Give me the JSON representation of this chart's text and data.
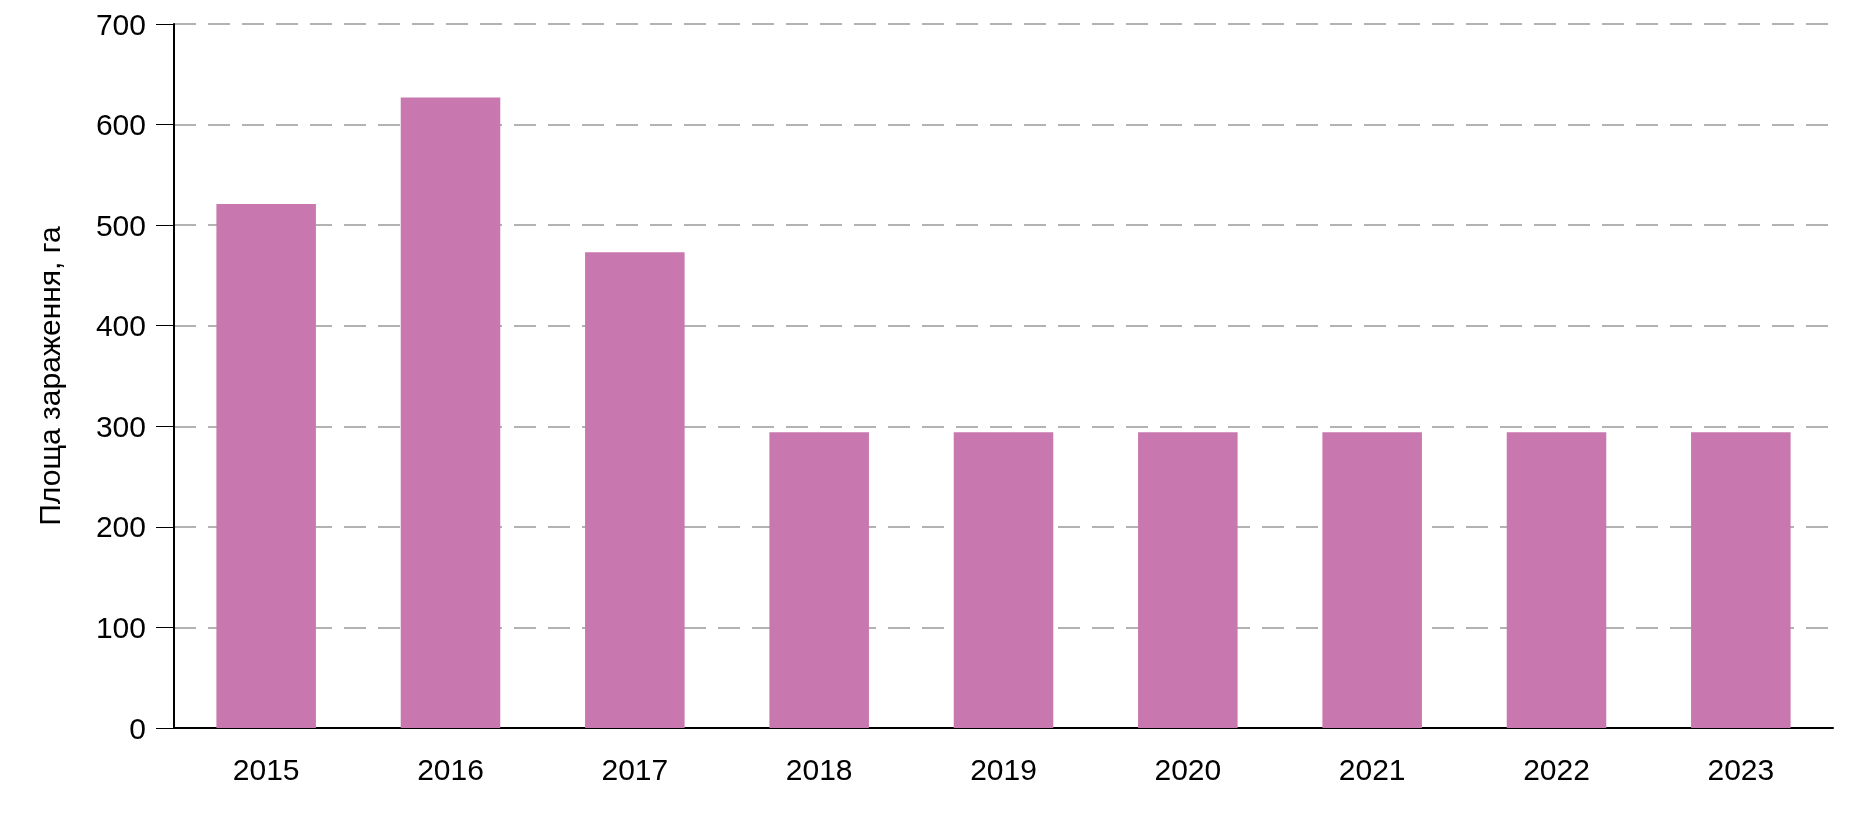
{
  "chart_data": {
    "type": "bar",
    "ylabel": "Площа зараження, га",
    "categories": [
      "2015",
      "2016",
      "2017",
      "2018",
      "2019",
      "2020",
      "2021",
      "2022",
      "2023"
    ],
    "values": [
      521,
      627,
      473,
      294,
      294,
      294,
      294,
      294,
      294
    ],
    "color": "#c878ae",
    "ylim": [
      0,
      700
    ],
    "yticks": [
      0,
      100,
      200,
      300,
      400,
      500,
      600,
      700
    ],
    "grid": "y"
  }
}
